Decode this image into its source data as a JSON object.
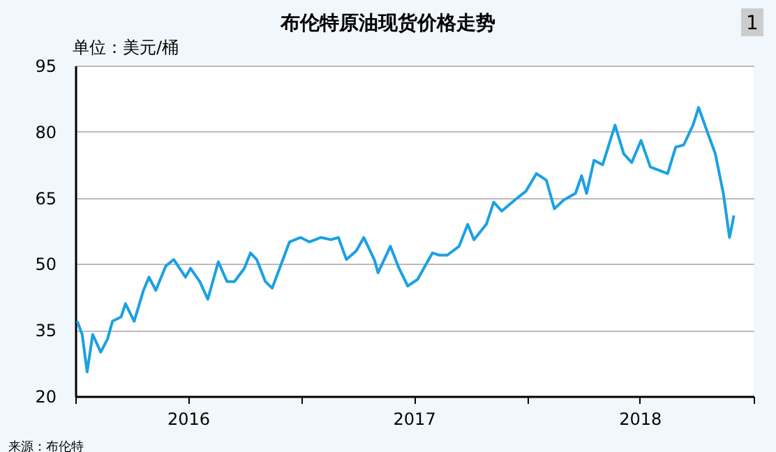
{
  "chart_data": {
    "type": "line",
    "title": "布伦特原油现货价格走势",
    "ylabel": "单位：美元/桶",
    "annotations": [
      "来源：布伦特",
      "1"
    ],
    "x": [
      "2016-01-04",
      "2016-01-12",
      "2016-01-20",
      "2016-01-29",
      "2016-02-11",
      "2016-02-22",
      "2016-03-01",
      "2016-03-15",
      "2016-03-22",
      "2016-04-05",
      "2016-04-20",
      "2016-04-29",
      "2016-05-10",
      "2016-05-26",
      "2016-06-08",
      "2016-06-27",
      "2016-07-05",
      "2016-07-20",
      "2016-08-02",
      "2016-08-19",
      "2016-09-02",
      "2016-09-14",
      "2016-09-30",
      "2016-10-10",
      "2016-10-20",
      "2016-11-03",
      "2016-11-14",
      "2016-11-30",
      "2016-12-12",
      "2016-12-30",
      "2017-01-13",
      "2017-02-01",
      "2017-02-17",
      "2017-03-01",
      "2017-03-14",
      "2017-03-30",
      "2017-04-11",
      "2017-04-28",
      "2017-05-04",
      "2017-05-24",
      "2017-06-07",
      "2017-06-21",
      "2017-07-07",
      "2017-07-31",
      "2017-08-11",
      "2017-08-24",
      "2017-09-12",
      "2017-09-26",
      "2017-10-06",
      "2017-10-26",
      "2017-11-07",
      "2017-11-20",
      "2017-12-11",
      "2017-12-29",
      "2018-01-15",
      "2018-01-31",
      "2018-02-13",
      "2018-02-28",
      "2018-03-19",
      "2018-03-29",
      "2018-04-06",
      "2018-04-18",
      "2018-05-02",
      "2018-05-22",
      "2018-06-05",
      "2018-06-18",
      "2018-07-03",
      "2018-07-18",
      "2018-08-15",
      "2018-08-28",
      "2018-09-10",
      "2018-09-25",
      "2018-10-04",
      "2018-10-18",
      "2018-10-31",
      "2018-11-13",
      "2018-11-23",
      "2018-11-28",
      "2018-11-30"
    ],
    "series": [
      {
        "color": "#1ba1e2",
        "values": [
          37,
          34,
          25.5,
          34,
          30,
          33,
          37,
          38,
          41,
          37,
          44,
          47,
          44,
          49.5,
          51,
          47,
          49,
          46,
          42,
          50.5,
          46,
          46,
          49,
          52.5,
          51,
          46,
          44.5,
          50.5,
          55,
          56,
          55,
          56,
          55.5,
          56,
          51,
          53,
          56,
          51,
          48,
          54,
          49,
          45,
          46.5,
          52.5,
          52,
          52,
          54,
          59,
          55.5,
          59,
          64,
          62,
          64.5,
          66.5,
          70.5,
          69,
          62.5,
          64.5,
          66,
          70,
          66,
          73.5,
          72.5,
          81.5,
          75,
          73,
          78,
          72,
          70.5,
          76.5,
          77,
          81.5,
          85.5,
          80,
          75,
          66,
          56,
          59.5,
          61
        ]
      }
    ],
    "xlim": [
      "2016-01-01",
      "2019-01-01"
    ],
    "xticks": [
      {
        "value": "2016-01-01",
        "label": null
      },
      {
        "value": "2016-07-01",
        "label": "2016"
      },
      {
        "value": "2017-01-01",
        "label": null
      },
      {
        "value": "2017-07-01",
        "label": "2017"
      },
      {
        "value": "2018-01-01",
        "label": null
      },
      {
        "value": "2018-07-01",
        "label": "2018"
      },
      {
        "value": "2019-01-01",
        "label": null
      }
    ],
    "ylim": [
      20,
      95
    ],
    "yticks": [
      20,
      35,
      50,
      65,
      80,
      95
    ],
    "grid": "y",
    "legend": false,
    "marker": "none",
    "line_style": "solid"
  }
}
